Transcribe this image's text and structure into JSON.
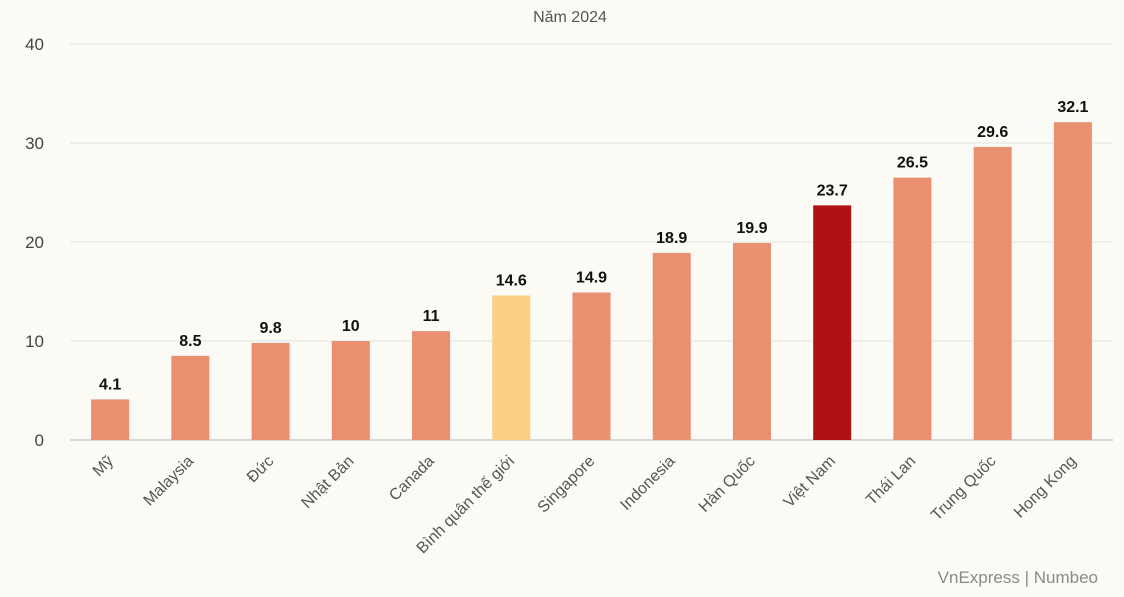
{
  "chart_data": {
    "type": "bar",
    "title": "Năm 2024",
    "categories": [
      "Mỹ",
      "Malaysia",
      "Đức",
      "Nhật Bản",
      "Canada",
      "Bình quân thế giới",
      "Singapore",
      "Indonesia",
      "Hàn Quốc",
      "Việt Nam",
      "Thái Lan",
      "Trung Quốc",
      "Hong Kong"
    ],
    "values": [
      4.1,
      8.5,
      9.8,
      10,
      11,
      14.6,
      14.9,
      18.9,
      19.9,
      23.7,
      26.5,
      29.6,
      32.1
    ],
    "data_labels": [
      "4.1",
      "8.5",
      "9.8",
      "10",
      "11",
      "14.6",
      "14.9",
      "18.9",
      "19.9",
      "23.7",
      "26.5",
      "29.6",
      "32.1"
    ],
    "ylim": [
      0,
      40
    ],
    "yticks": [
      0,
      10,
      20,
      30,
      40
    ],
    "grid": true,
    "xlabel": "",
    "ylabel": "",
    "colors": {
      "default": "#e99070",
      "highlight": "#b01214",
      "average": "#f9d084"
    },
    "bar_colors": [
      "default",
      "default",
      "default",
      "default",
      "default",
      "average",
      "default",
      "default",
      "default",
      "highlight",
      "default",
      "default",
      "default"
    ]
  },
  "source": "VnExpress | Numbeo"
}
